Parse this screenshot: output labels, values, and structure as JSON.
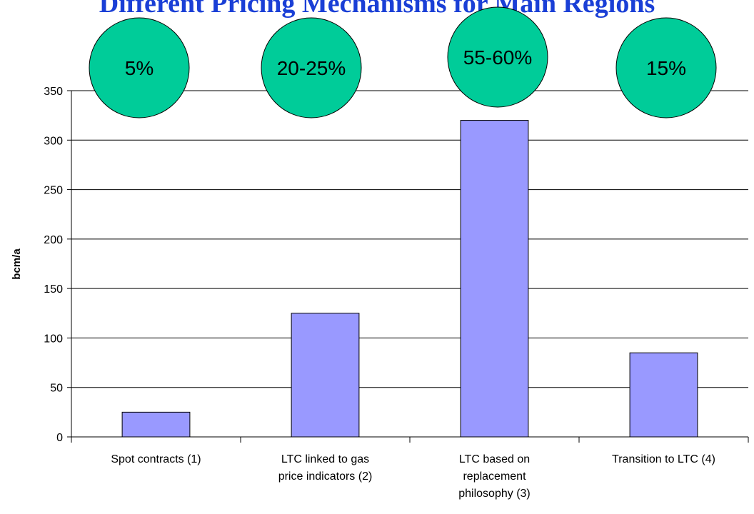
{
  "chart_data": {
    "type": "bar",
    "title": "Different Pricing Mechanisms for Main Regions",
    "y_label": "bcm/a",
    "categories": [
      "Spot contracts (1)",
      "LTC linked to gas\nprice indicators (2)",
      "LTC based on\nreplacement\nphilosophy (3)",
      "Transition to LTC (4)"
    ],
    "values": [
      25,
      125,
      320,
      85
    ],
    "color": "#9999ff",
    "annotations": [
      "5%",
      "20-25%",
      "55-60%",
      "15%"
    ],
    "annotation_color": "#00cc99",
    "ylim": [
      0,
      350
    ],
    "yticks": [
      0,
      50,
      100,
      150,
      200,
      250,
      300,
      350
    ],
    "grid": true
  }
}
